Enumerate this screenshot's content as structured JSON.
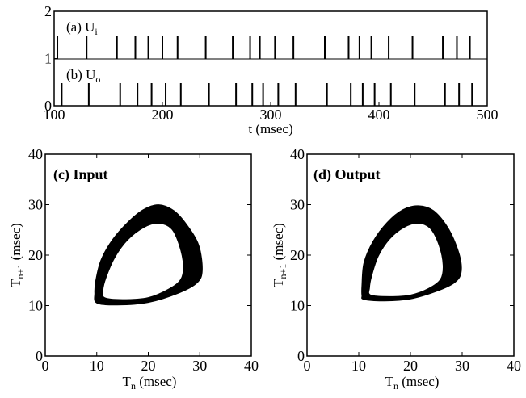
{
  "chart_data": [
    {
      "id": "raster",
      "type": "scatter",
      "description_type": "spike-raster",
      "xlabel": "t (msec)",
      "xlim": [
        100,
        500
      ],
      "xticks": [
        "100",
        "200",
        "300",
        "400",
        "500"
      ],
      "ylim": [
        0,
        2
      ],
      "yticks": [
        "0",
        "1",
        "2"
      ],
      "series": [
        {
          "name": "(a) U",
          "subscript": "i",
          "level": 1,
          "spike_times": [
            103,
            130,
            158,
            175,
            187,
            200,
            214,
            240,
            265,
            281,
            290,
            304,
            321,
            350,
            372,
            382,
            393,
            409,
            431,
            459,
            472,
            484
          ]
        },
        {
          "name": "(b) U",
          "subscript": "o",
          "level": 0,
          "spike_times": [
            107,
            132,
            161,
            177,
            190,
            203,
            217,
            243,
            268,
            283,
            293,
            307,
            323,
            352,
            374,
            385,
            396,
            411,
            433,
            461,
            474,
            486
          ]
        }
      ]
    },
    {
      "id": "input",
      "type": "scatter",
      "description_type": "return-map",
      "label": "(c) Input",
      "xlabel_main": "T",
      "xlabel_sub": "n",
      "xlabel_rest": " (msec)",
      "ylabel_main": "T",
      "ylabel_sub": "n+1",
      "ylabel_rest": " (msec)",
      "xlim": [
        0,
        40
      ],
      "ylim": [
        0,
        40
      ],
      "xticks": [
        "0",
        "10",
        "20",
        "30",
        "40"
      ],
      "yticks": [
        "0",
        "10",
        "20",
        "30",
        "40"
      ],
      "outer_loop": [
        [
          10,
          10.5
        ],
        [
          14,
          10.1
        ],
        [
          20,
          10.6
        ],
        [
          26,
          12.5
        ],
        [
          29.5,
          14.5
        ],
        [
          30.5,
          17
        ],
        [
          29.8,
          22
        ],
        [
          27.5,
          26
        ],
        [
          25,
          28.8
        ],
        [
          22,
          30
        ],
        [
          19,
          29
        ],
        [
          16,
          26.5
        ],
        [
          13,
          23
        ],
        [
          10.8,
          19
        ],
        [
          9.8,
          15
        ],
        [
          9.6,
          12.5
        ]
      ],
      "inner_loop": [
        [
          11.5,
          11.6
        ],
        [
          15,
          11.2
        ],
        [
          20,
          11.6
        ],
        [
          24,
          13.3
        ],
        [
          26.3,
          15.2
        ],
        [
          26.8,
          18
        ],
        [
          26,
          22
        ],
        [
          24.5,
          25.2
        ],
        [
          22,
          26.3
        ],
        [
          19.2,
          25.5
        ],
        [
          16,
          23
        ],
        [
          13.5,
          19.5
        ],
        [
          11.8,
          15.5
        ],
        [
          11.2,
          13
        ]
      ]
    },
    {
      "id": "output",
      "type": "scatter",
      "description_type": "return-map",
      "label": "(d) Output",
      "xlabel_main": "T",
      "xlabel_sub": "n",
      "xlabel_rest": " (msec)",
      "ylabel_main": "T",
      "ylabel_sub": "n+1",
      "ylabel_rest": " (msec)",
      "xlim": [
        0,
        40
      ],
      "ylim": [
        0,
        40
      ],
      "xticks": [
        "0",
        "10",
        "20",
        "30",
        "40"
      ],
      "yticks": [
        "0",
        "10",
        "20",
        "30",
        "40"
      ],
      "outer_loop": [
        [
          11,
          11.2
        ],
        [
          15,
          10.9
        ],
        [
          20,
          11.3
        ],
        [
          25,
          12.8
        ],
        [
          28.5,
          14.5
        ],
        [
          29.8,
          16.5
        ],
        [
          29.5,
          20
        ],
        [
          27.5,
          25
        ],
        [
          24.5,
          28.8
        ],
        [
          21.5,
          29.8
        ],
        [
          18.5,
          29
        ],
        [
          15.5,
          26.5
        ],
        [
          12.8,
          22.8
        ],
        [
          11,
          18.5
        ],
        [
          10.6,
          14
        ],
        [
          10.6,
          12
        ]
      ],
      "inner_loop": [
        [
          12.3,
          12.1
        ],
        [
          16,
          11.8
        ],
        [
          20,
          12.1
        ],
        [
          23.5,
          13.4
        ],
        [
          25.8,
          15.2
        ],
        [
          26.3,
          18
        ],
        [
          25.5,
          22
        ],
        [
          23.8,
          25.3
        ],
        [
          21.5,
          26.3
        ],
        [
          18.8,
          25.5
        ],
        [
          16,
          23.2
        ],
        [
          13.8,
          19.8
        ],
        [
          12.5,
          15.8
        ],
        [
          12.1,
          13.5
        ]
      ]
    }
  ]
}
